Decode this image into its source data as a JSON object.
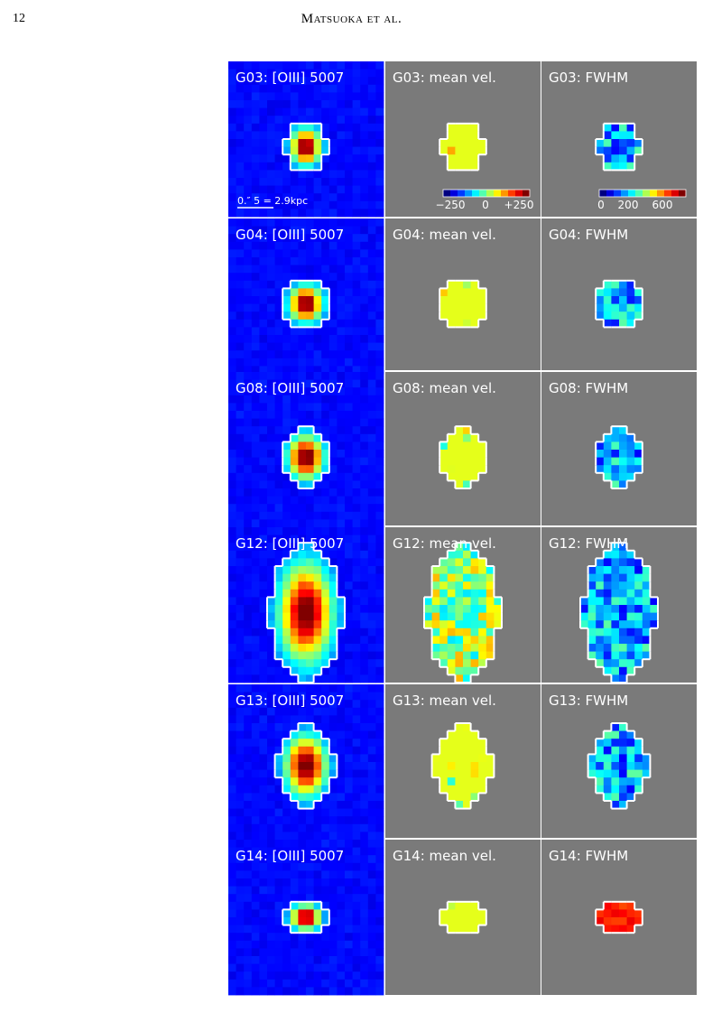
{
  "header": {
    "page_number": "12",
    "running_title": "Matsuoka et al."
  },
  "figure": {
    "rows": [
      [
        "G03: [OIII] 5007",
        "G03: mean vel.",
        "G03: FWHM"
      ],
      [
        "G04: [OIII] 5007",
        "G04: mean vel.",
        "G04: FWHM"
      ],
      [
        "G08: [OIII] 5007",
        "G08: mean vel.",
        "G08: FWHM"
      ],
      [
        "G12: [OIII] 5007",
        "G12: mean vel.",
        "G12: FWHM"
      ],
      [
        "G13: [OIII] 5007",
        "G13: mean vel.",
        "G13: FWHM"
      ],
      [
        "G14: [OIII] 5007",
        "G14: mean vel.",
        "G14: FWHM"
      ]
    ],
    "scale_bar": "0.″ 5 = 2.9kpc",
    "velocity_colorbar_ticks": [
      "−250",
      "0",
      "+250"
    ],
    "fwhm_colorbar_ticks": [
      "0",
      "200",
      "600"
    ]
  }
}
